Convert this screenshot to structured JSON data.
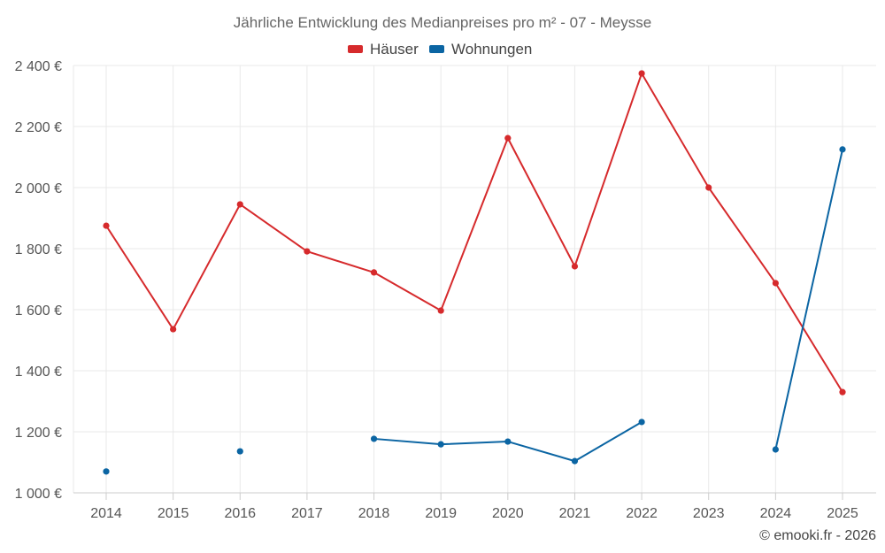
{
  "chart_data": {
    "type": "line",
    "title": "Jährliche Entwicklung des Medianpreises pro m² - 07 - Meysse",
    "xlabel": "",
    "ylabel": "",
    "categories": [
      "2014",
      "2015",
      "2016",
      "2017",
      "2018",
      "2019",
      "2020",
      "2021",
      "2022",
      "2023",
      "2024",
      "2025"
    ],
    "series": [
      {
        "name": "Häuser",
        "color": "#d62a2c",
        "values": [
          1875,
          1536,
          1945,
          1791,
          1722,
          1597,
          2162,
          1742,
          2374,
          2000,
          1687,
          1330
        ]
      },
      {
        "name": "Wohnungen",
        "color": "#0b65a3",
        "values": [
          1070,
          null,
          1136,
          null,
          1177,
          1159,
          1168,
          1104,
          1232,
          null,
          1142,
          2125
        ]
      }
    ],
    "ylim": [
      1000,
      2400
    ],
    "yticks": [
      1000,
      1200,
      1400,
      1600,
      1800,
      2000,
      2200,
      2400
    ],
    "ytick_labels": [
      "1 000 €",
      "1 200 €",
      "1 400 €",
      "1 600 €",
      "1 800 €",
      "2 000 €",
      "2 200 €",
      "2 400 €"
    ],
    "grid": true,
    "legend": "top-center"
  },
  "footer": {
    "credit": "© emooki.fr - 2026"
  }
}
